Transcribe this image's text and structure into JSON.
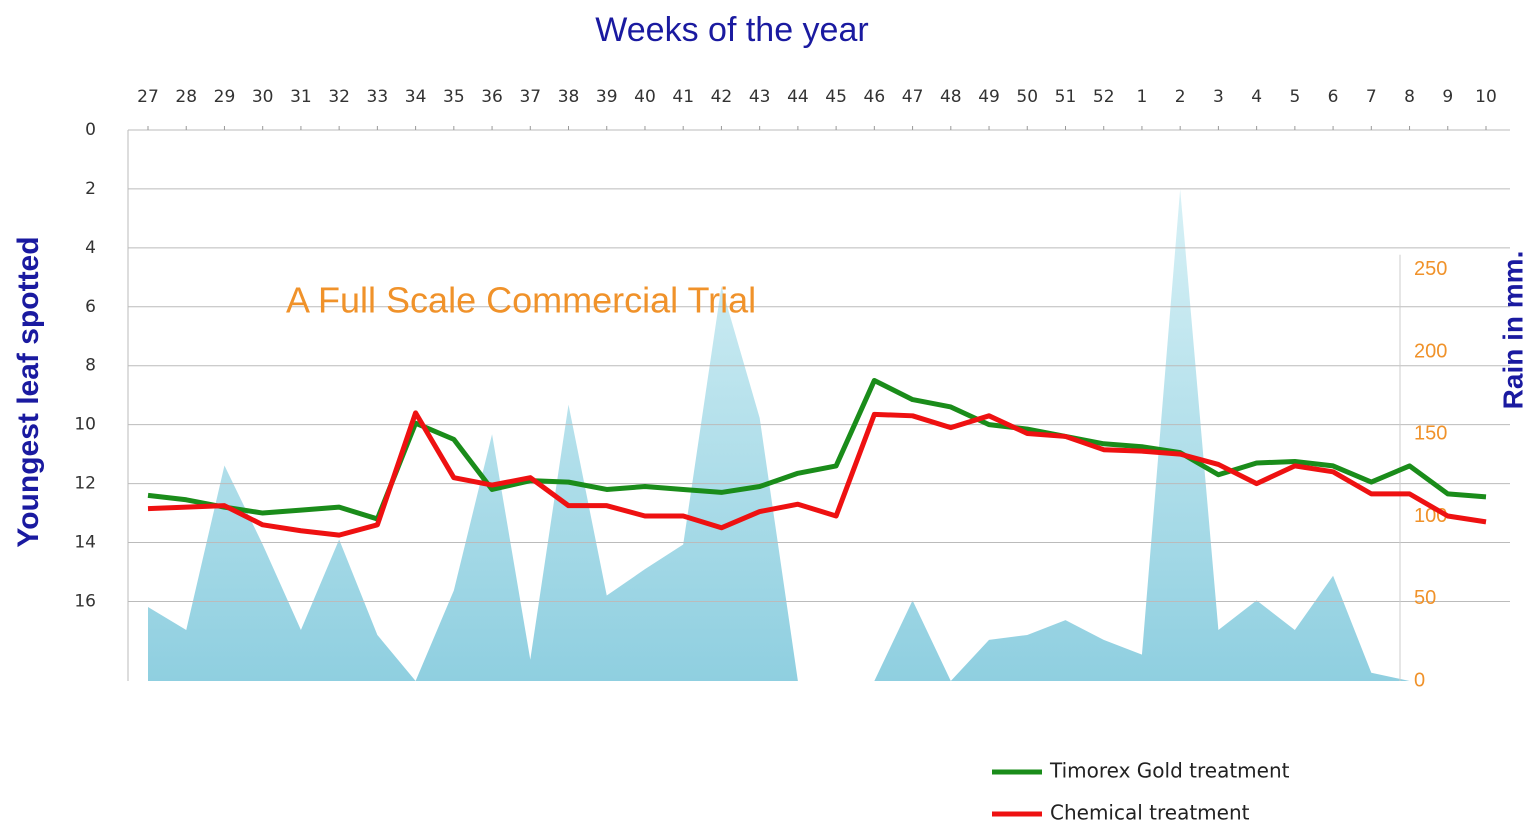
{
  "chart_data": {
    "type": "line",
    "title": "Weeks of the year",
    "y_label": "Youngest leaf spotted",
    "y2_label": "Rain in mm.",
    "annotation": "A Full Scale Commercial Trial",
    "categories": [
      "27",
      "28",
      "29",
      "30",
      "31",
      "32",
      "33",
      "34",
      "35",
      "36",
      "37",
      "38",
      "39",
      "40",
      "41",
      "42",
      "43",
      "44",
      "45",
      "46",
      "47",
      "48",
      "49",
      "50",
      "51",
      "52",
      "1",
      "2",
      "3",
      "4",
      "5",
      "6",
      "7",
      "8",
      "9",
      "10"
    ],
    "series": [
      {
        "name": "Timorex Gold treatment",
        "color": "#1a8c1a",
        "values": [
          12.4,
          12.55,
          12.8,
          13.0,
          12.9,
          12.8,
          13.2,
          9.95,
          10.5,
          12.2,
          11.9,
          11.95,
          12.2,
          12.1,
          12.2,
          12.3,
          12.1,
          11.65,
          11.4,
          8.5,
          9.15,
          9.4,
          10.0,
          10.15,
          10.4,
          10.65,
          10.75,
          10.95,
          11.7,
          11.3,
          11.25,
          11.4,
          11.95,
          11.4,
          12.35,
          12.45
        ]
      },
      {
        "name": "Chemical treatment",
        "color": "#ee1111",
        "values": [
          12.85,
          12.8,
          12.75,
          13.4,
          13.6,
          13.75,
          13.4,
          9.6,
          11.8,
          12.05,
          11.8,
          12.75,
          12.75,
          13.1,
          13.1,
          13.5,
          12.95,
          12.7,
          13.1,
          9.65,
          9.7,
          10.1,
          9.7,
          10.3,
          10.4,
          10.85,
          10.9,
          11.0,
          11.35,
          12.0,
          11.4,
          11.6,
          12.35,
          12.35,
          13.1,
          13.3
        ]
      },
      {
        "type": "area",
        "axis": "y2",
        "color": "#a8dce8",
        "values": [
          45,
          31,
          131,
          83,
          31,
          86,
          28,
          0,
          55,
          150,
          13,
          168,
          52,
          68,
          83,
          240,
          160,
          0,
          null,
          0,
          49,
          0,
          25,
          28,
          37,
          25,
          16,
          299,
          31,
          49,
          31,
          64,
          5,
          0,
          null,
          null
        ]
      }
    ],
    "ylim": [
      0,
      18.7
    ],
    "y_reversed": true,
    "yticks": [
      0,
      2,
      4,
      6,
      8,
      10,
      12,
      14,
      16
    ],
    "y2lim": [
      0,
      335
    ],
    "y2ticks": [
      0,
      50,
      100,
      150,
      200,
      250
    ],
    "grid": true,
    "legend": "bottom-right"
  }
}
